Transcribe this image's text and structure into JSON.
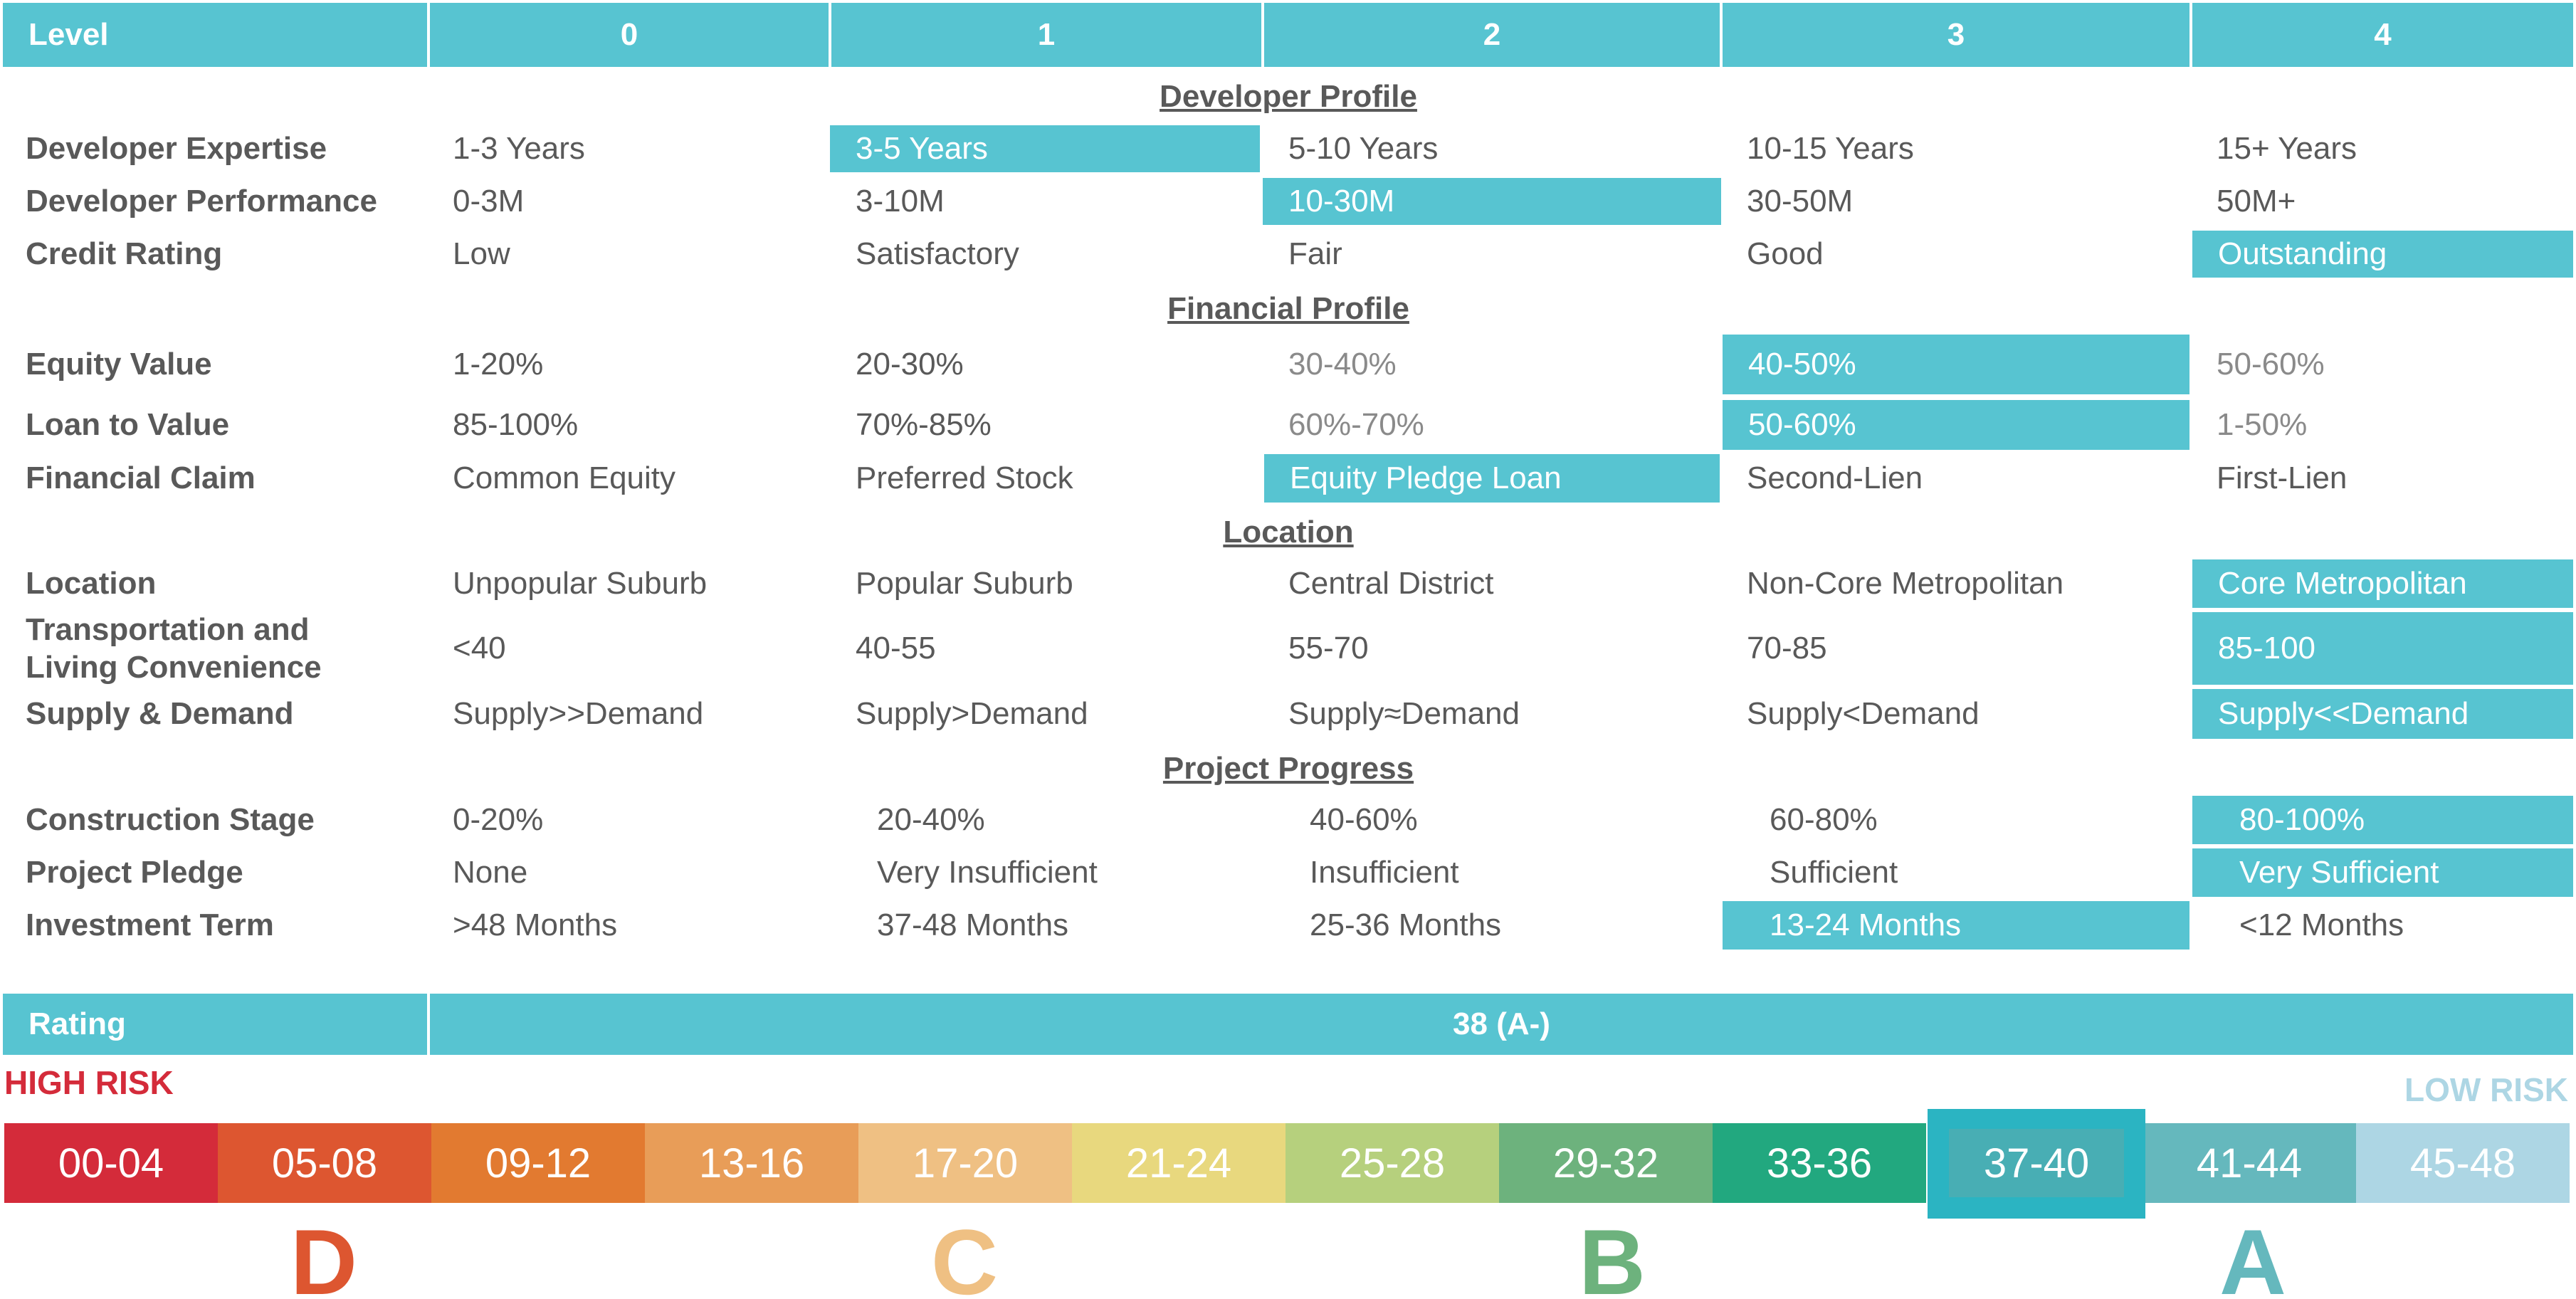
{
  "header": {
    "level_label": "Level",
    "levels": [
      "0",
      "1",
      "2",
      "3",
      "4"
    ]
  },
  "sections": {
    "developer_profile": "Developer Profile",
    "financial_profile": "Financial Profile",
    "location": "Location",
    "project_progress": "Project Progress"
  },
  "rows": {
    "developer_expertise": {
      "label": "Developer Expertise",
      "values": [
        "1-3 Years",
        "3-5 Years",
        "5-10 Years",
        "10-15 Years",
        "15+ Years"
      ],
      "selected": 1
    },
    "developer_performance": {
      "label": "Developer Performance",
      "values": [
        "0-3M",
        "3-10M",
        "10-30M",
        "30-50M",
        "50M+"
      ],
      "selected": 2
    },
    "credit_rating": {
      "label": "Credit Rating",
      "values": [
        "Low",
        "Satisfactory",
        "Fair",
        "Good",
        "Outstanding"
      ],
      "selected": 4
    },
    "equity_value": {
      "label": "Equity Value",
      "values": [
        "1-20%",
        "20-30%",
        "30-40%",
        "40-50%",
        "50-60%"
      ],
      "selected": 3
    },
    "loan_to_value": {
      "label": "Loan to Value",
      "values": [
        "85-100%",
        "70%-85%",
        "60%-70%",
        "50-60%",
        "1-50%"
      ],
      "selected": 3
    },
    "financial_claim": {
      "label": "Financial Claim",
      "values": [
        "Common Equity",
        "Preferred Stock",
        "Equity Pledge Loan",
        "Second-Lien",
        "First-Lien"
      ],
      "selected": 2
    },
    "location": {
      "label": "Location",
      "values": [
        "Unpopular Suburb",
        "Popular Suburb",
        "Central District",
        "Non-Core Metropolitan",
        "Core Metropolitan"
      ],
      "selected": 4
    },
    "transportation": {
      "label_line1": "Transportation and",
      "label_line2": "Living Convenience",
      "values": [
        "<40",
        "40-55",
        "55-70",
        "70-85",
        "85-100"
      ],
      "selected": 4
    },
    "supply_demand": {
      "label": "Supply & Demand",
      "values": [
        "Supply>>Demand",
        "Supply>Demand",
        "Supply≈Demand",
        "Supply<Demand",
        "Supply<<Demand"
      ],
      "selected": 4
    },
    "construction_stage": {
      "label": "Construction Stage",
      "values": [
        "0-20%",
        "20-40%",
        "40-60%",
        "60-80%",
        "80-100%"
      ],
      "selected": 4
    },
    "project_pledge": {
      "label": "Project Pledge",
      "values": [
        "None",
        "Very Insufficient",
        "Insufficient",
        "Sufficient",
        "Very Sufficient"
      ],
      "selected": 4
    },
    "investment_term": {
      "label": "Investment Term",
      "values": [
        ">48 Months",
        "37-48 Months",
        "25-36 Months",
        "13-24 Months",
        "<12 Months"
      ],
      "selected": 3
    }
  },
  "rating": {
    "label": "Rating",
    "value": "38 (A-)"
  },
  "risk_labels": {
    "high": "HIGH RISK",
    "low": "LOW RISK"
  },
  "scale": {
    "segments": [
      "00-04",
      "05-08",
      "09-12",
      "13-16",
      "17-20",
      "21-24",
      "25-28",
      "29-32",
      "33-36",
      "37-40",
      "41-44",
      "45-48"
    ],
    "colors": [
      "#d42b3a",
      "#dd5630",
      "#e27a30",
      "#e89d58",
      "#efc083",
      "#e8d87e",
      "#b6d07d",
      "#6db27d",
      "#22a87f",
      "#2bb4c2",
      "#65b8bd",
      "#add6e4"
    ],
    "selected": "37-40"
  },
  "grades": [
    {
      "letter": "D",
      "color": "#dd5630"
    },
    {
      "letter": "C",
      "color": "#efc083"
    },
    {
      "letter": "B",
      "color": "#6db27d"
    },
    {
      "letter": "A",
      "color": "#65b8bd"
    }
  ],
  "colors": {
    "accent": "#57c4d1",
    "high_risk": "#d42b3a",
    "low_risk": "#add6e4"
  }
}
